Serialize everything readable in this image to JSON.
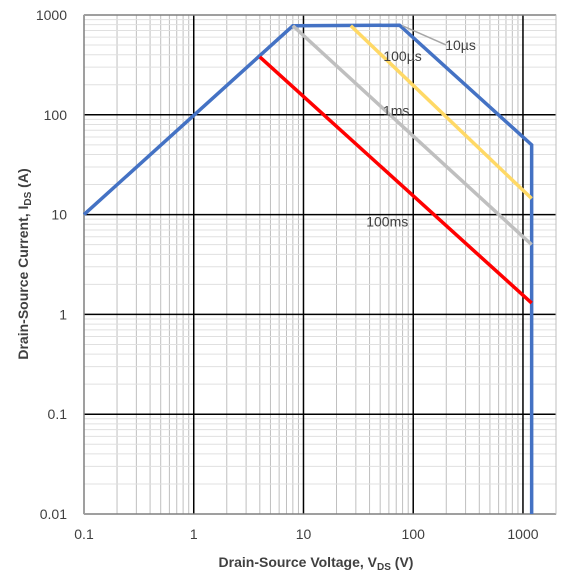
{
  "chart_data": {
    "type": "line",
    "title": "",
    "xscale": "log",
    "yscale": "log",
    "xlim": [
      0.1,
      2000
    ],
    "ylim": [
      0.01,
      1000
    ],
    "grid": true,
    "legend": "none",
    "xlabel_prefix": "Drain-Source Voltage, V",
    "xlabel_sub": "DS",
    "xlabel_suffix": " (V)",
    "ylabel_prefix": "Drain-Source Current, I",
    "ylabel_sub": "DS",
    "ylabel_suffix": " (A)",
    "x_ticks": [
      {
        "value": 0.1,
        "label": "0.1"
      },
      {
        "value": 1,
        "label": "1"
      },
      {
        "value": 10,
        "label": "10"
      },
      {
        "value": 100,
        "label": "100"
      },
      {
        "value": 1000,
        "label": "1000"
      }
    ],
    "y_ticks": [
      {
        "value": 0.01,
        "label": "0.01"
      },
      {
        "value": 0.1,
        "label": "0.1"
      },
      {
        "value": 1,
        "label": "1"
      },
      {
        "value": 10,
        "label": "10"
      },
      {
        "value": 100,
        "label": "100"
      },
      {
        "value": 1000,
        "label": "1000"
      }
    ],
    "series": [
      {
        "color": "#4472C4",
        "points": [
          [
            0.1,
            10
          ],
          [
            8,
            780
          ],
          [
            75,
            790
          ],
          [
            1200,
            50
          ],
          [
            1200,
            0.01
          ]
        ]
      },
      {
        "color": "#FFD966",
        "points": [
          [
            27,
            780
          ],
          [
            1200,
            14.5
          ]
        ]
      },
      {
        "color": "#BFBFBF",
        "points": [
          [
            8,
            780
          ],
          [
            1200,
            5
          ]
        ]
      },
      {
        "color": "#FF0000",
        "points": [
          [
            4,
            380
          ],
          [
            1200,
            1.3
          ]
        ]
      }
    ],
    "annotations": [
      {
        "text": "10µs",
        "x": 270,
        "y": 500,
        "leader": [
          [
            80,
            780
          ],
          [
            200,
            500
          ]
        ]
      },
      {
        "text": "100µs",
        "x": 80,
        "y": 390
      },
      {
        "text": "1ms",
        "x": 70,
        "y": 110
      },
      {
        "text": "100ms",
        "x": 58,
        "y": 8.5
      }
    ]
  }
}
